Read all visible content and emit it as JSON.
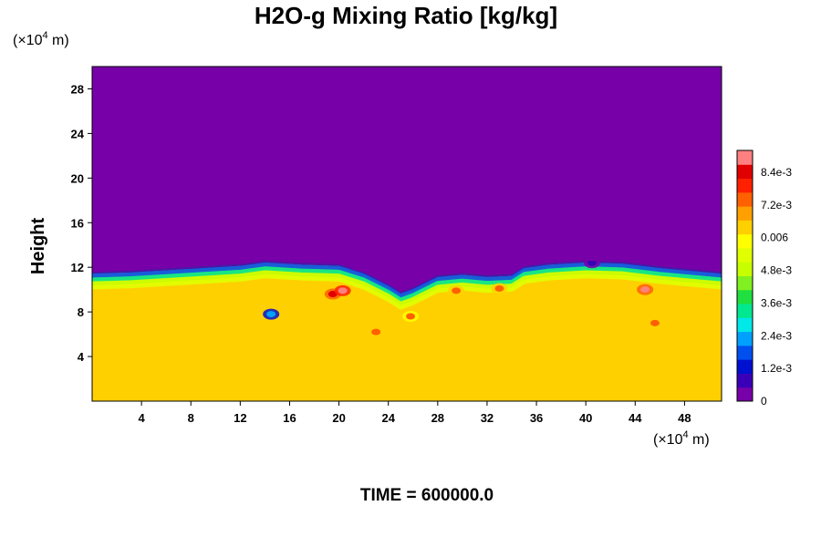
{
  "chart_data": {
    "type": "heatmap",
    "title": "H2O-g Mixing Ratio [kg/kg]",
    "ylabel": "Height",
    "x_unit": {
      "prefix": "(×10",
      "exp": "4",
      "suffix": " m)"
    },
    "y_unit": {
      "prefix": "(×10",
      "exp": "4",
      "suffix": " m)"
    },
    "xlim": [
      0,
      51
    ],
    "ylim": [
      0,
      30
    ],
    "x_ticks": [
      4,
      8,
      12,
      16,
      20,
      24,
      28,
      32,
      36,
      40,
      44,
      48
    ],
    "y_ticks": [
      4,
      8,
      12,
      16,
      20,
      24,
      28
    ],
    "grid": false,
    "time_label": "TIME = 600000.0",
    "colorbar": {
      "vmin": 0,
      "vmax": 0.0092,
      "labels": [
        {
          "value": 0,
          "text": "0"
        },
        {
          "value": 0.0012,
          "text": "1.2e-3"
        },
        {
          "value": 0.0024,
          "text": "2.4e-3"
        },
        {
          "value": 0.0036,
          "text": "3.6e-3"
        },
        {
          "value": 0.0048,
          "text": "4.8e-3"
        },
        {
          "value": 0.006,
          "text": "0.006"
        },
        {
          "value": 0.0072,
          "text": "7.2e-3"
        },
        {
          "value": 0.0084,
          "text": "8.4e-3"
        }
      ],
      "colors": [
        "#7800a8",
        "#3a00b8",
        "#0010d0",
        "#0050f0",
        "#00a0ff",
        "#00e8e8",
        "#00e890",
        "#20e040",
        "#80f020",
        "#c8ff00",
        "#e0ff00",
        "#ffff00",
        "#ffd000",
        "#ffa000",
        "#ff6000",
        "#ff2000",
        "#e00000",
        "#ff8080"
      ]
    },
    "field_summary": {
      "background_value": 0.0062,
      "upper_value": 0,
      "interface_height": [
        [
          0,
          11.6
        ],
        [
          3,
          11.7
        ],
        [
          6,
          11.9
        ],
        [
          9,
          12.1
        ],
        [
          12,
          12.3
        ],
        [
          14,
          12.6
        ],
        [
          17,
          12.4
        ],
        [
          20,
          12.3
        ],
        [
          22,
          11.6
        ],
        [
          24,
          10.5
        ],
        [
          25,
          9.8
        ],
        [
          26,
          10.2
        ],
        [
          28,
          11.3
        ],
        [
          30,
          11.5
        ],
        [
          32,
          11.3
        ],
        [
          34,
          11.4
        ],
        [
          35,
          12.1
        ],
        [
          37,
          12.4
        ],
        [
          40,
          12.6
        ],
        [
          43,
          12.5
        ],
        [
          46,
          12.1
        ],
        [
          49,
          11.8
        ],
        [
          51,
          11.6
        ]
      ],
      "moist_patches": [
        {
          "x": 19.5,
          "y": 9.6,
          "value": 0.0086
        },
        {
          "x": 20.3,
          "y": 9.9,
          "value": 0.0089
        },
        {
          "x": 23.0,
          "y": 6.2,
          "value": 0.0074
        },
        {
          "x": 25.8,
          "y": 7.6,
          "value": 0.0072
        },
        {
          "x": 29.5,
          "y": 9.9,
          "value": 0.0076
        },
        {
          "x": 33.0,
          "y": 10.1,
          "value": 0.0074
        },
        {
          "x": 44.8,
          "y": 10.0,
          "value": 0.0088
        },
        {
          "x": 45.6,
          "y": 7.0,
          "value": 0.0076
        }
      ],
      "dry_patches": [
        {
          "x": 14.5,
          "y": 7.8,
          "value": 0.0024
        },
        {
          "x": 21.5,
          "y": 12.2,
          "value": 0.0008
        },
        {
          "x": 40.5,
          "y": 12.4,
          "value": 0.001
        }
      ]
    }
  }
}
